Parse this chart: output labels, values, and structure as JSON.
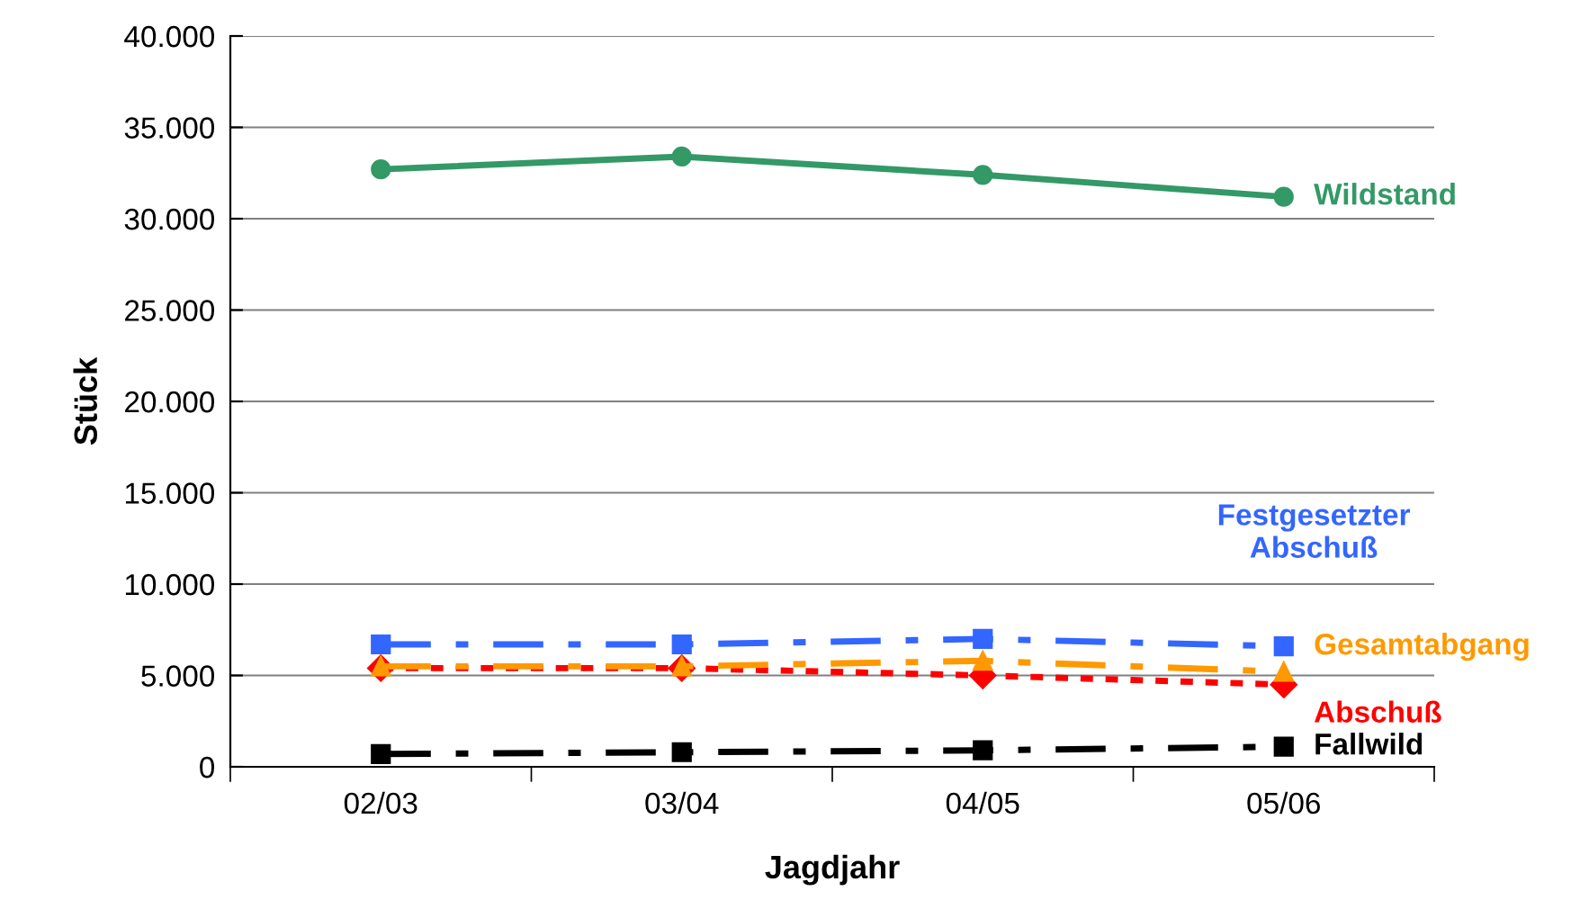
{
  "chart_data": {
    "type": "line",
    "xlabel": "Jagdjahr",
    "ylabel": "Stück",
    "categories": [
      "02/03",
      "03/04",
      "04/05",
      "05/06"
    ],
    "series": [
      {
        "name": "Wildstand",
        "color": "#339966",
        "values": [
          32700,
          33400,
          32400,
          31200
        ],
        "marker": "circle",
        "line_style": "solid"
      },
      {
        "name": "Festgesetzter\nAbschuß",
        "color": "#3366ff",
        "values": [
          6700,
          6700,
          7000,
          6600
        ],
        "marker": "square",
        "line_style": "dashed"
      },
      {
        "name": "Gesamtabgang",
        "color": "#ff9900",
        "values": [
          5500,
          5500,
          5800,
          5200
        ],
        "marker": "triangle",
        "line_style": "dashed"
      },
      {
        "name": "Abschuß",
        "color": "#ff0000",
        "values": [
          5400,
          5400,
          5000,
          4500
        ],
        "marker": "diamond",
        "line_style": "dotted"
      },
      {
        "name": "Fallwild",
        "color": "#000000",
        "values": [
          700,
          800,
          900,
          1100
        ],
        "marker": "square",
        "line_style": "dashed"
      }
    ],
    "ylim": [
      0,
      40000
    ],
    "yticks": [
      {
        "value": 0,
        "label": "0"
      },
      {
        "value": 5000,
        "label": "5.000"
      },
      {
        "value": 10000,
        "label": "10.000"
      },
      {
        "value": 15000,
        "label": "15.000"
      },
      {
        "value": 20000,
        "label": "20.000"
      },
      {
        "value": 25000,
        "label": "25.000"
      },
      {
        "value": 30000,
        "label": "30.000"
      },
      {
        "value": 35000,
        "label": "35.000"
      },
      {
        "value": 40000,
        "label": "40.000"
      }
    ],
    "grid": "y",
    "legend": false
  }
}
